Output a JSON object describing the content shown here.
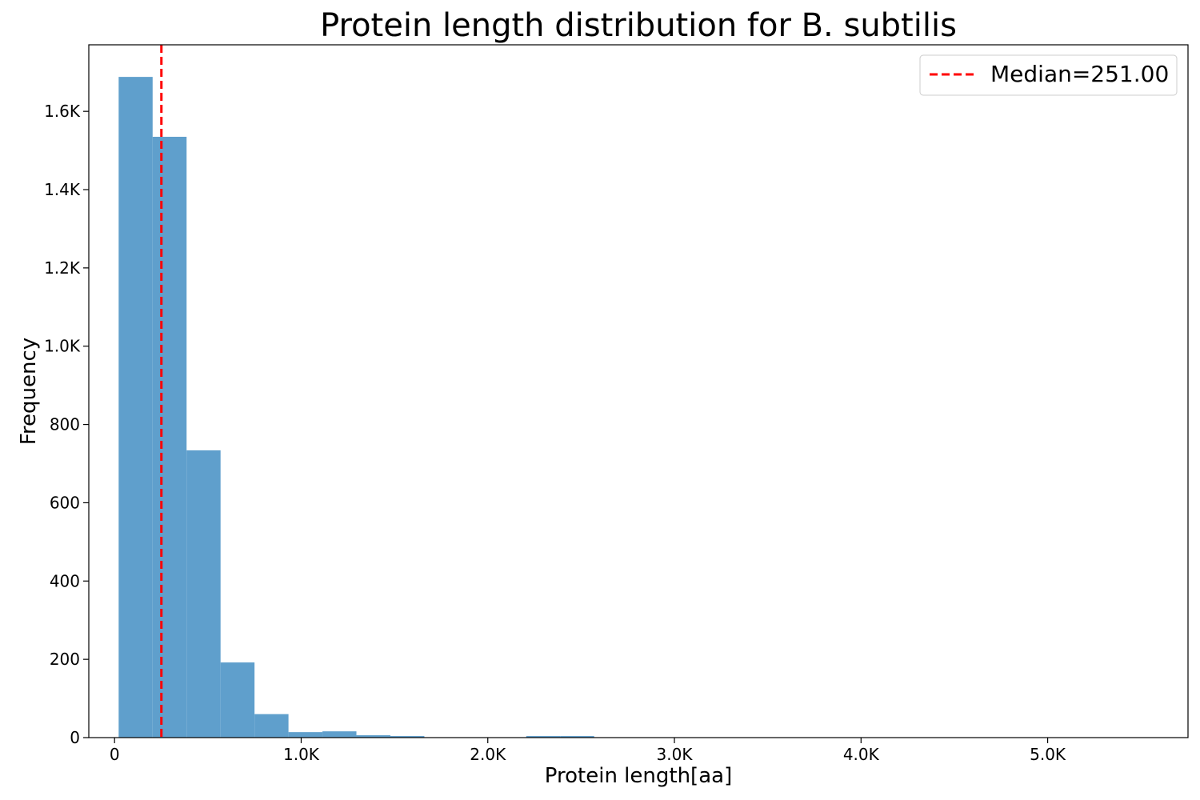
{
  "chart_data": {
    "type": "bar",
    "title": "Protein length distribution for B. subtilis",
    "xlabel": "Protein length[aa]",
    "ylabel": "Frequency",
    "xlim": [
      -138,
      5752
    ],
    "ylim": [
      0,
      1770
    ],
    "x_ticks": [
      {
        "value": 0,
        "label": "0"
      },
      {
        "value": 1000,
        "label": "1.0K"
      },
      {
        "value": 2000,
        "label": "2.0K"
      },
      {
        "value": 3000,
        "label": "3.0K"
      },
      {
        "value": 4000,
        "label": "4.0K"
      },
      {
        "value": 5000,
        "label": "5.0K"
      }
    ],
    "y_ticks": [
      {
        "value": 0,
        "label": "0"
      },
      {
        "value": 200,
        "label": "200"
      },
      {
        "value": 400,
        "label": "400"
      },
      {
        "value": 600,
        "label": "600"
      },
      {
        "value": 800,
        "label": "800"
      },
      {
        "value": 1000,
        "label": "1.0K"
      },
      {
        "value": 1200,
        "label": "1.2K"
      },
      {
        "value": 1400,
        "label": "1.4K"
      },
      {
        "value": 1600,
        "label": "1.6K"
      }
    ],
    "bin_start": 22,
    "bin_width": 182,
    "series": [
      {
        "values": [
          1688,
          1535,
          734,
          192,
          60,
          14,
          16,
          6,
          4,
          0,
          0,
          0,
          4,
          4,
          0,
          0,
          0,
          0,
          0,
          0,
          0,
          0,
          0,
          0,
          0,
          0,
          0,
          0,
          0,
          0,
          0,
          0
        ]
      }
    ],
    "bar_color": "#5f9fcc",
    "median": {
      "value": 251,
      "color": "#ff0000",
      "label": "Median=251.00"
    },
    "legend_placement": "top-right",
    "grid": false
  }
}
